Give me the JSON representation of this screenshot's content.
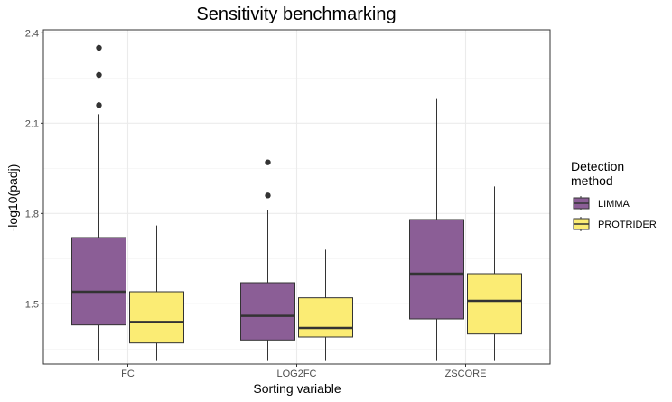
{
  "chart_data": {
    "type": "boxplot",
    "title": "Sensitivity benchmarking",
    "xlabel": "Sorting variable",
    "ylabel": "-log10(padj)",
    "ylim": [
      1.3,
      2.41
    ],
    "yticks": [
      1.5,
      1.8,
      2.1,
      2.4
    ],
    "ytick_labels": [
      "1.5",
      "1.8",
      "2.1",
      "2.4"
    ],
    "categories": [
      "FC",
      "LOG2FC",
      "ZSCORE"
    ],
    "grid": true,
    "legend": {
      "title_lines": [
        "Detection",
        "method"
      ],
      "placement": "right"
    },
    "series": [
      {
        "name": "LIMMA",
        "color": "#8B5E96",
        "boxes": [
          {
            "category": "FC",
            "min": 1.31,
            "q1": 1.43,
            "median": 1.54,
            "q3": 1.72,
            "max": 2.13,
            "outliers": [
              2.16,
              2.26,
              2.35
            ]
          },
          {
            "category": "LOG2FC",
            "min": 1.31,
            "q1": 1.38,
            "median": 1.46,
            "q3": 1.57,
            "max": 1.81,
            "outliers": [
              1.86,
              1.97
            ]
          },
          {
            "category": "ZSCORE",
            "min": 1.31,
            "q1": 1.45,
            "median": 1.6,
            "q3": 1.78,
            "max": 2.18,
            "outliers": []
          }
        ]
      },
      {
        "name": "PROTRIDER",
        "color": "#FBEC74",
        "boxes": [
          {
            "category": "FC",
            "min": 1.31,
            "q1": 1.37,
            "median": 1.44,
            "q3": 1.54,
            "max": 1.76,
            "outliers": []
          },
          {
            "category": "LOG2FC",
            "min": 1.31,
            "q1": 1.39,
            "median": 1.42,
            "q3": 1.52,
            "max": 1.68,
            "outliers": []
          },
          {
            "category": "ZSCORE",
            "min": 1.31,
            "q1": 1.4,
            "median": 1.51,
            "q3": 1.6,
            "max": 1.89,
            "outliers": []
          }
        ]
      }
    ]
  }
}
